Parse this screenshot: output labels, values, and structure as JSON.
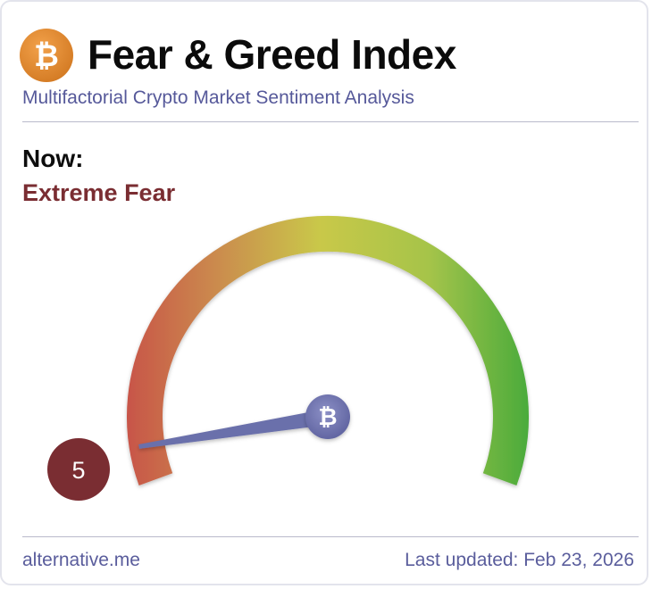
{
  "header": {
    "logo_icon": "bitcoin-icon",
    "title": "Fear & Greed Index",
    "subtitle": "Multifactorial Crypto Market Sentiment Analysis"
  },
  "current": {
    "label": "Now:",
    "status": "Extreme Fear",
    "status_color": "#7a2d32",
    "value": 5,
    "value_text": "5"
  },
  "gauge": {
    "min": 0,
    "max": 100,
    "center_icon": "bitcoin-icon",
    "colors": {
      "fear": "#c85548",
      "neutral": "#c9c84a",
      "greed": "#4aab3b",
      "needle": "#6a6fab",
      "badge": "#7a2d32"
    }
  },
  "footer": {
    "source": "alternative.me",
    "updated": "Last updated: Feb 23, 2026"
  }
}
